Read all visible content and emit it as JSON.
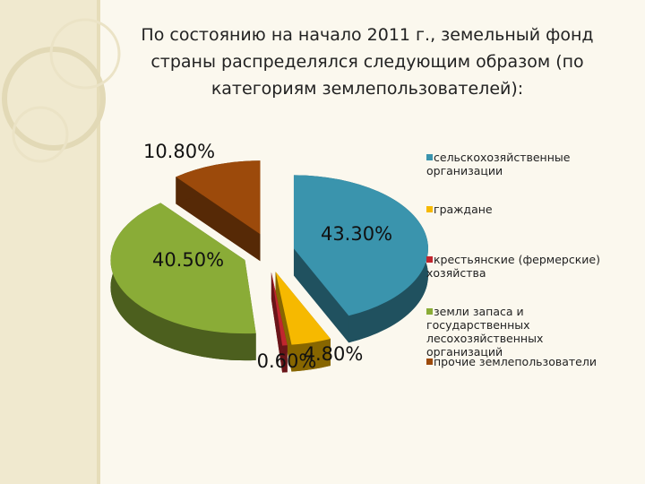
{
  "chart_data": {
    "type": "pie3d",
    "title": "По состоянию на начало 2011 г., земельный фонд страны распределялся следующим образом (по категориям землепользователей):",
    "categories": [
      "сельскохозяйственные организации",
      "граждане",
      "крестьянские (фермерские) хозяйства",
      "земли запаса и государственных лесохозяйственных организаций",
      "прочие землепользователи"
    ],
    "values": [
      43.3,
      4.8,
      0.6,
      40.5,
      10.8
    ],
    "value_labels": [
      "43.30%",
      "4.80%",
      "0.60%",
      "40.50%",
      "10.80%"
    ],
    "colors": [
      "#3a94ad",
      "#f6b900",
      "#c0262e",
      "#8aac37",
      "#9c4a0b"
    ],
    "legend": "right"
  }
}
